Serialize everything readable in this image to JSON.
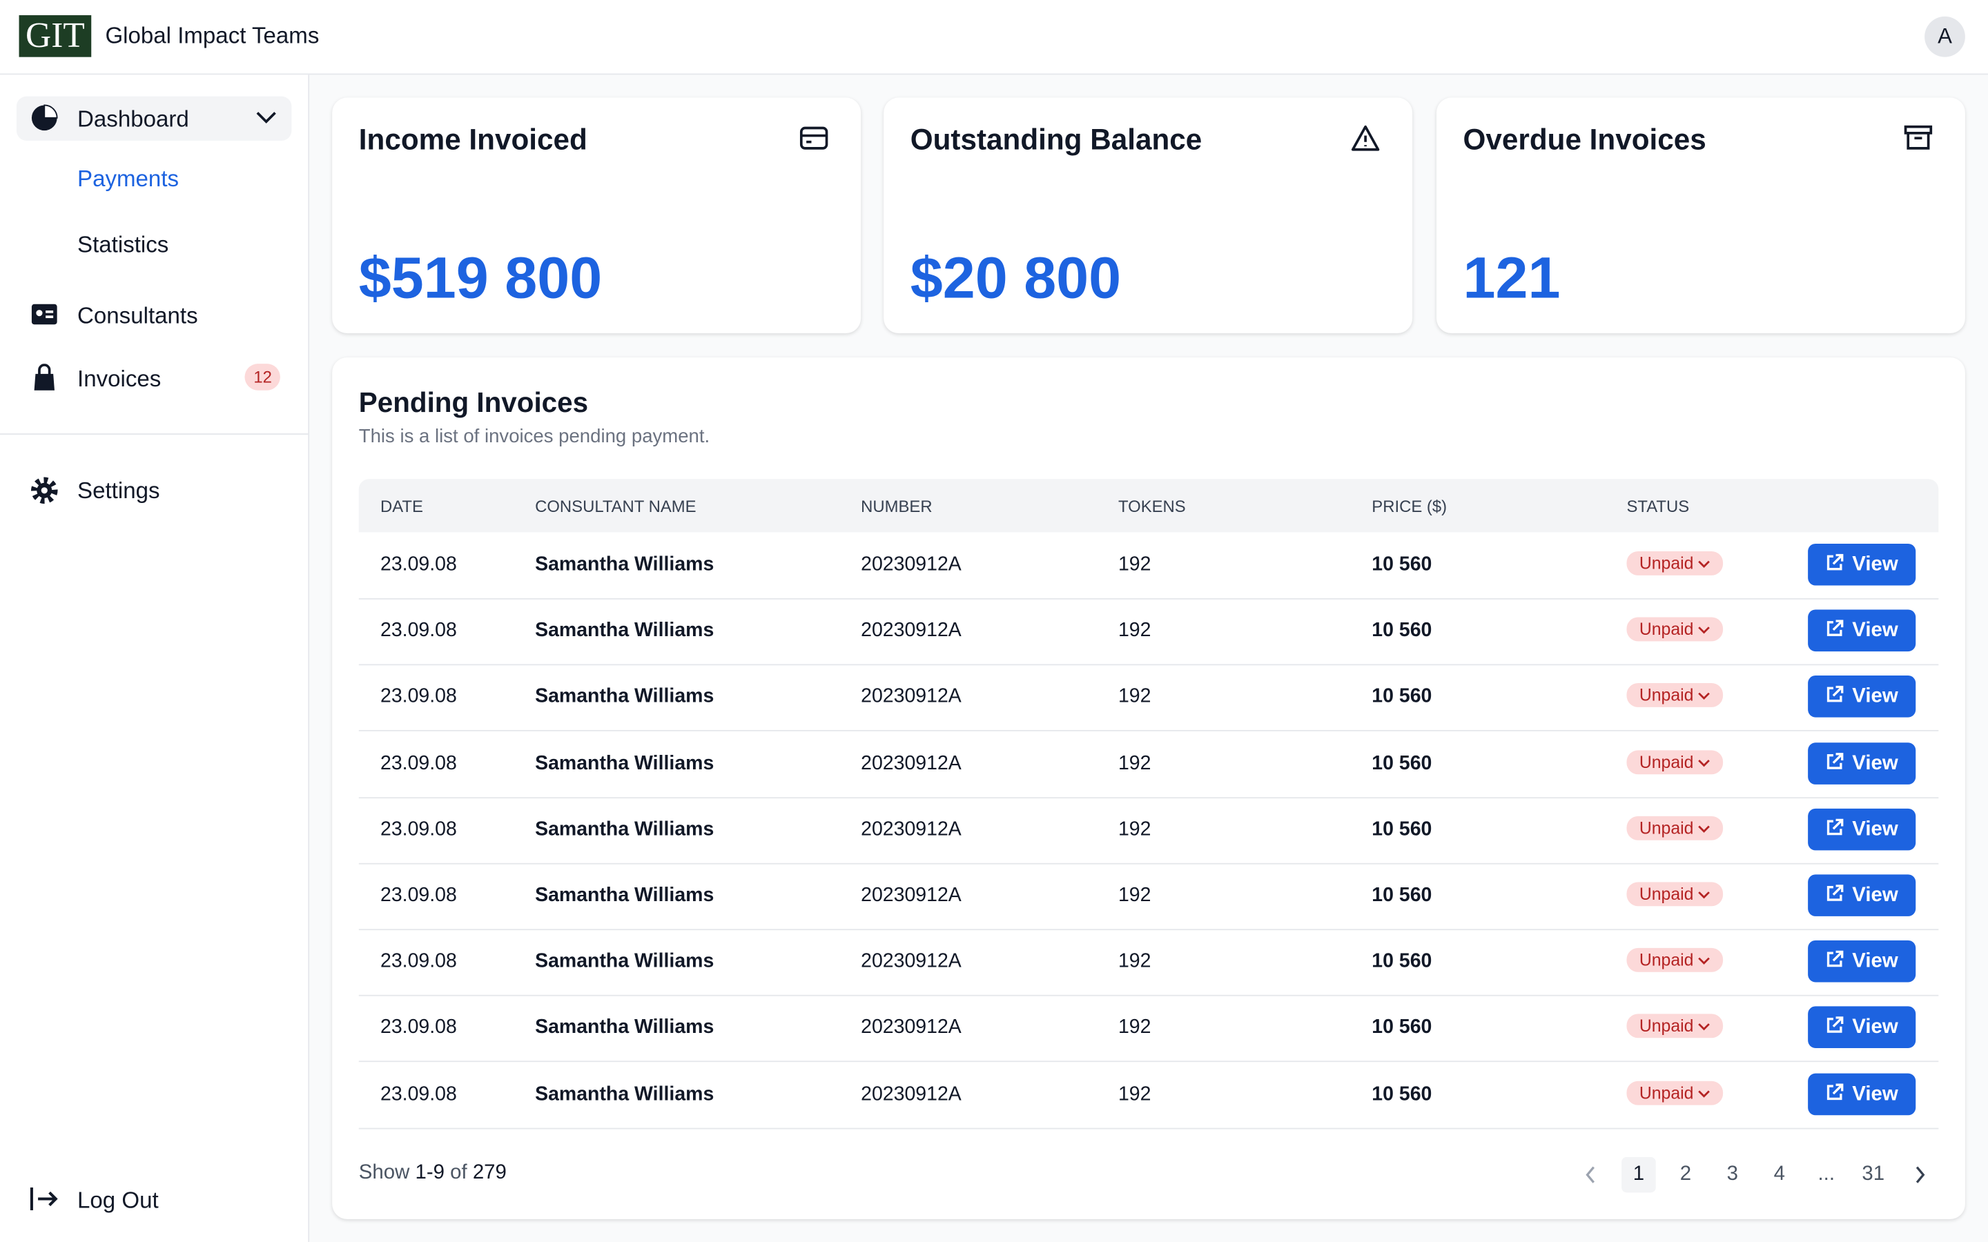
{
  "header": {
    "logo": "GIT",
    "title": "Global Impact Teams",
    "avatar": "A"
  },
  "sidebar": {
    "items": [
      "Dashboard",
      "Payments",
      "Statistics",
      "Consultants",
      "Invoices",
      "Settings",
      "Log Out"
    ],
    "invoice_badge": "12"
  },
  "cards": [
    {
      "title": "Income Invoiced",
      "value": "$519 800"
    },
    {
      "title": "Outstanding Balance",
      "value": "$20 800"
    },
    {
      "title": "Overdue Invoices",
      "value": "121"
    }
  ],
  "table": {
    "title": "Pending Invoices",
    "subtitle": "This is a list of invoices pending payment.",
    "columns": [
      "DATE",
      "CONSULTANT NAME",
      "NUMBER",
      "TOKENS",
      "PRICE ($)",
      "STATUS"
    ],
    "rows": [
      [
        "23.09.08",
        "Samantha Williams",
        "20230912A",
        "192",
        "10 560",
        "Unpaid",
        "View"
      ],
      [
        "23.09.08",
        "Samantha Williams",
        "20230912A",
        "192",
        "10 560",
        "Unpaid",
        "View"
      ],
      [
        "23.09.08",
        "Samantha Williams",
        "20230912A",
        "192",
        "10 560",
        "Unpaid",
        "View"
      ],
      [
        "23.09.08",
        "Samantha Williams",
        "20230912A",
        "192",
        "10 560",
        "Unpaid",
        "View"
      ],
      [
        "23.09.08",
        "Samantha Williams",
        "20230912A",
        "192",
        "10 560",
        "Unpaid",
        "View"
      ],
      [
        "23.09.08",
        "Samantha Williams",
        "20230912A",
        "192",
        "10 560",
        "Unpaid",
        "View"
      ],
      [
        "23.09.08",
        "Samantha Williams",
        "20230912A",
        "192",
        "10 560",
        "Unpaid",
        "View"
      ],
      [
        "23.09.08",
        "Samantha Williams",
        "20230912A",
        "192",
        "10 560",
        "Unpaid",
        "View"
      ],
      [
        "23.09.08",
        "Samantha Williams",
        "20230912A",
        "192",
        "10 560",
        "Unpaid",
        "View"
      ]
    ]
  },
  "pagination": {
    "show": "Show",
    "range": "1-9",
    "of": "of",
    "total": "279",
    "pages": [
      "1",
      "2",
      "3",
      "4",
      "...",
      "31"
    ]
  }
}
